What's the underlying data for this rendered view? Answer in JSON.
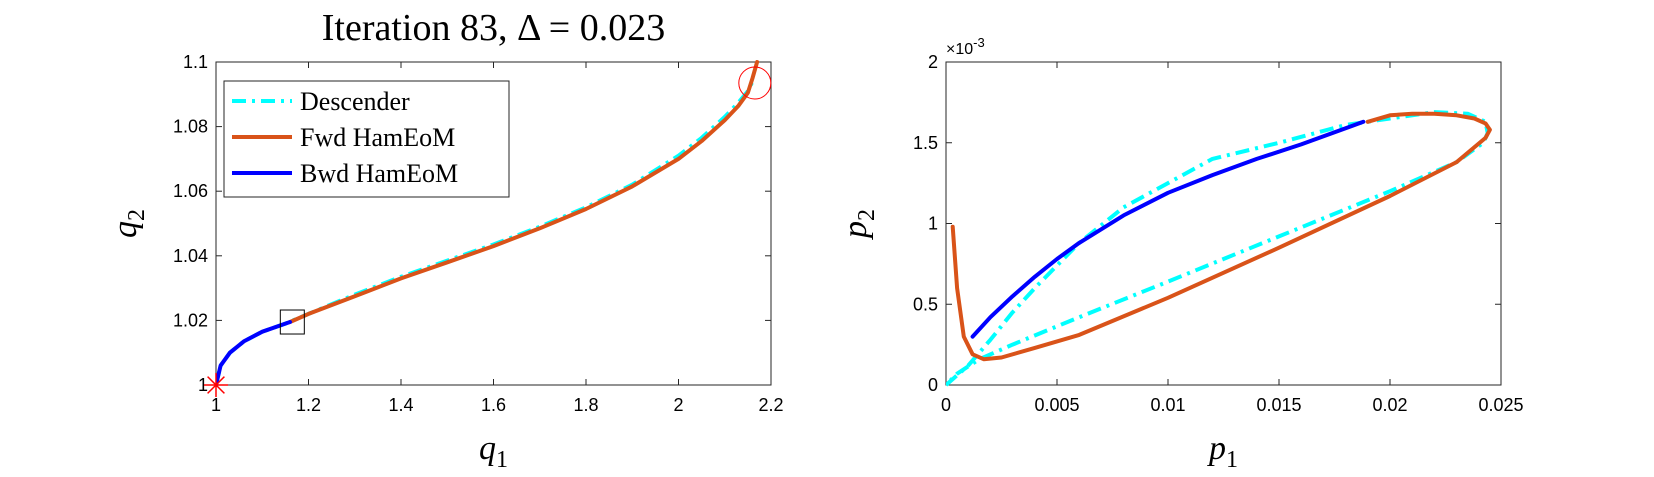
{
  "chart_data": [
    {
      "type": "line",
      "title": "Iteration 83, Δ = 0.023",
      "xlabel": "q",
      "xlabel_sub": "1",
      "ylabel": "q",
      "ylabel_sub": "2",
      "xlim": [
        1,
        2.2
      ],
      "ylim": [
        1,
        1.1
      ],
      "xticks": [
        1,
        1.2,
        1.4,
        1.6,
        1.8,
        2,
        2.2
      ],
      "yticks": [
        1,
        1.02,
        1.04,
        1.06,
        1.08,
        1.1
      ],
      "xtick_labels": [
        "1",
        "1.2",
        "1.4",
        "1.6",
        "1.8",
        "2",
        "2.2"
      ],
      "ytick_labels": [
        "1",
        "1.02",
        "1.04",
        "1.06",
        "1.08",
        "1.1"
      ],
      "grid": false,
      "legend_position": "top-left",
      "series": [
        {
          "name": "Descender",
          "color": "#00FFFF",
          "style": "dash-dot",
          "x": [
            1.0,
            1.01,
            1.03,
            1.06,
            1.1,
            1.15,
            1.2,
            1.3,
            1.4,
            1.5,
            1.6,
            1.7,
            1.8,
            1.9,
            2.0,
            2.05,
            2.1,
            2.13,
            2.15,
            2.16
          ],
          "y": [
            1.0,
            1.006,
            1.01,
            1.0135,
            1.0165,
            1.019,
            1.022,
            1.028,
            1.0335,
            1.0385,
            1.0435,
            1.049,
            1.055,
            1.062,
            1.071,
            1.0765,
            1.083,
            1.0875,
            1.091,
            1.094
          ]
        },
        {
          "name": "Fwd HamEoM",
          "color": "#D95319",
          "style": "solid",
          "x": [
            1.16,
            1.2,
            1.3,
            1.4,
            1.5,
            1.6,
            1.7,
            1.8,
            1.9,
            2.0,
            2.05,
            2.1,
            2.13,
            2.15,
            2.16,
            2.17
          ],
          "y": [
            1.0195,
            1.022,
            1.0275,
            1.033,
            1.038,
            1.043,
            1.0485,
            1.0545,
            1.0615,
            1.07,
            1.0755,
            1.082,
            1.0865,
            1.0905,
            1.095,
            1.1
          ]
        },
        {
          "name": "Bwd HamEoM",
          "color": "#0000FF",
          "style": "solid",
          "x": [
            1.0,
            1.01,
            1.03,
            1.06,
            1.1,
            1.13,
            1.16
          ],
          "y": [
            1.0,
            1.006,
            1.01,
            1.0135,
            1.0165,
            1.018,
            1.0195
          ]
        }
      ],
      "markers": [
        {
          "kind": "star",
          "x": 1.0,
          "y": 1.0,
          "color": "#FF0000"
        },
        {
          "kind": "square",
          "x": 1.165,
          "y": 1.0195,
          "color": "#000000"
        },
        {
          "kind": "circle",
          "x": 2.165,
          "y": 1.0935,
          "color": "#FF0000"
        }
      ]
    },
    {
      "type": "line",
      "xlabel": "p",
      "xlabel_sub": "1",
      "ylabel": "p",
      "ylabel_sub": "2",
      "exponent_label": "×10",
      "exponent_power": "-3",
      "xlim": [
        0,
        0.025
      ],
      "ylim": [
        0,
        0.002
      ],
      "xticks": [
        0,
        0.005,
        0.01,
        0.015,
        0.02,
        0.025
      ],
      "yticks": [
        0,
        0.0005,
        0.001,
        0.0015,
        0.002
      ],
      "xtick_labels": [
        "0",
        "0.005",
        "0.01",
        "0.015",
        "0.02",
        "0.025"
      ],
      "ytick_labels": [
        "0",
        "0.5",
        "1",
        "1.5",
        "2"
      ],
      "grid": false,
      "series": [
        {
          "name": "Descender",
          "color": "#00FFFF",
          "style": "dash-dot",
          "x": [
            0.0,
            0.001,
            0.002,
            0.003,
            0.004,
            0.006,
            0.008,
            0.01,
            0.012,
            0.015,
            0.018,
            0.02,
            0.022,
            0.0235,
            0.0243,
            0.0244,
            0.0242,
            0.023,
            0.02,
            0.015,
            0.01,
            0.006,
            0.003,
            0.0015,
            0.0005,
            0.0
          ],
          "y": [
            0.0,
            0.00012,
            0.00028,
            0.00045,
            0.0006,
            0.00088,
            0.0011,
            0.00125,
            0.0014,
            0.0015,
            0.00161,
            0.00165,
            0.00169,
            0.00168,
            0.00163,
            0.00156,
            0.0015,
            0.00138,
            0.0012,
            0.00092,
            0.00064,
            0.00042,
            0.00025,
            0.00016,
            7e-05,
            0.0
          ]
        },
        {
          "name": "Fwd HamEoM",
          "color": "#D95319",
          "style": "solid",
          "x": [
            0.0003,
            0.0005,
            0.0008,
            0.0012,
            0.0017,
            0.0025,
            0.004,
            0.006,
            0.01,
            0.015,
            0.02,
            0.023,
            0.0243,
            0.0245,
            0.0243,
            0.0238,
            0.023,
            0.022,
            0.021,
            0.02,
            0.019
          ],
          "y": [
            0.00098,
            0.0006,
            0.0003,
            0.00019,
            0.00016,
            0.00017,
            0.00023,
            0.00031,
            0.00054,
            0.00085,
            0.00117,
            0.00138,
            0.00153,
            0.00158,
            0.00162,
            0.00165,
            0.00167,
            0.00168,
            0.00168,
            0.00167,
            0.00163
          ]
        },
        {
          "name": "Bwd HamEoM",
          "color": "#0000FF",
          "style": "solid",
          "x": [
            0.0012,
            0.002,
            0.003,
            0.004,
            0.005,
            0.006,
            0.008,
            0.01,
            0.012,
            0.014,
            0.016,
            0.0188
          ],
          "y": [
            0.0003,
            0.00042,
            0.00055,
            0.00067,
            0.00078,
            0.00088,
            0.00105,
            0.00119,
            0.0013,
            0.0014,
            0.00149,
            0.00163
          ]
        }
      ]
    }
  ]
}
